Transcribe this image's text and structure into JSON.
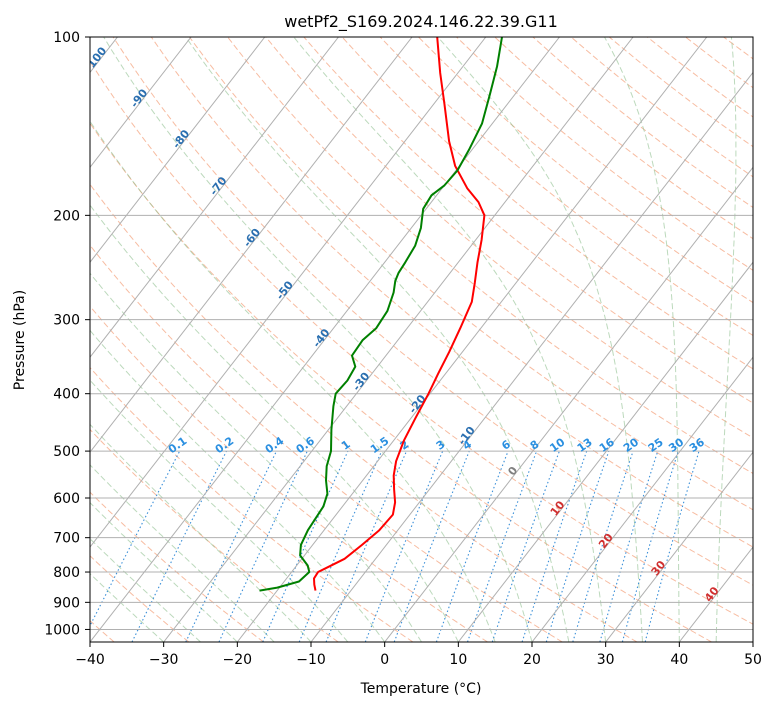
{
  "chart_data": {
    "type": "line",
    "subtype": "skew-t log-p diagram",
    "title": "wetPf2_S169.2024.146.22.39.G11",
    "xlabel": "Temperature (°C)",
    "ylabel": "Pressure (hPa)",
    "xlim": [
      -40,
      50
    ],
    "ylim": [
      1050,
      100
    ],
    "y_scale": "log",
    "grid": true,
    "x_ticks": [
      -40,
      -30,
      -20,
      -10,
      0,
      10,
      20,
      30,
      40,
      50
    ],
    "x_tick_labels": [
      "−40",
      "−30",
      "−20",
      "−10",
      "0",
      "10",
      "20",
      "30",
      "40",
      "50"
    ],
    "y_ticks": [
      1000,
      900,
      800,
      700,
      600,
      500,
      400,
      300,
      200,
      100
    ],
    "y_tick_labels": [
      "1000",
      "900",
      "800",
      "700",
      "600",
      "500",
      "400",
      "300",
      "200",
      "100"
    ],
    "colors": {
      "temperature": "#ff0000",
      "dewpoint": "#008000",
      "isotherm_grid": "#b0b0b0",
      "dry_adiabat": "#f4a582",
      "moist_adiabat": "#8fbf8f",
      "mixing_ratio": "#3a8fd8",
      "isotherm_label": "#2a6fb0",
      "mixing_ratio_label": "#2a8fe0",
      "freezing_label": "#d03030"
    },
    "series": [
      {
        "name": "Temperature",
        "points": [
          {
            "p": 860,
            "t": -14.8
          },
          {
            "p": 840,
            "t": -15.6
          },
          {
            "p": 820,
            "t": -16.3
          },
          {
            "p": 800,
            "t": -16.4
          },
          {
            "p": 785,
            "t": -15.6
          },
          {
            "p": 760,
            "t": -14.2
          },
          {
            "p": 720,
            "t": -13.3
          },
          {
            "p": 680,
            "t": -12.5
          },
          {
            "p": 640,
            "t": -12.3
          },
          {
            "p": 610,
            "t": -13.3
          },
          {
            "p": 580,
            "t": -14.8
          },
          {
            "p": 550,
            "t": -16.3
          },
          {
            "p": 520,
            "t": -17.5
          },
          {
            "p": 480,
            "t": -18.6
          },
          {
            "p": 440,
            "t": -19.4
          },
          {
            "p": 400,
            "t": -20.2
          },
          {
            "p": 370,
            "t": -21.0
          },
          {
            "p": 340,
            "t": -21.8
          },
          {
            "p": 310,
            "t": -22.8
          },
          {
            "p": 280,
            "t": -24.0
          },
          {
            "p": 260,
            "t": -25.6
          },
          {
            "p": 240,
            "t": -27.4
          },
          {
            "p": 220,
            "t": -29.2
          },
          {
            "p": 200,
            "t": -31.4
          },
          {
            "p": 190,
            "t": -33.6
          },
          {
            "p": 180,
            "t": -36.6
          },
          {
            "p": 165,
            "t": -40.6
          },
          {
            "p": 150,
            "t": -44.0
          },
          {
            "p": 130,
            "t": -48.5
          },
          {
            "p": 115,
            "t": -52.4
          },
          {
            "p": 100,
            "t": -56.6
          }
        ]
      },
      {
        "name": "Dewpoint",
        "points": [
          {
            "p": 860,
            "t": -22.4
          },
          {
            "p": 850,
            "t": -20.3
          },
          {
            "p": 830,
            "t": -18.0
          },
          {
            "p": 800,
            "t": -17.6
          },
          {
            "p": 780,
            "t": -18.5
          },
          {
            "p": 750,
            "t": -20.6
          },
          {
            "p": 720,
            "t": -21.6
          },
          {
            "p": 680,
            "t": -22.2
          },
          {
            "p": 620,
            "t": -22.6
          },
          {
            "p": 590,
            "t": -23.4
          },
          {
            "p": 560,
            "t": -25.0
          },
          {
            "p": 530,
            "t": -26.4
          },
          {
            "p": 500,
            "t": -27.4
          },
          {
            "p": 460,
            "t": -29.6
          },
          {
            "p": 420,
            "t": -31.8
          },
          {
            "p": 400,
            "t": -32.8
          },
          {
            "p": 380,
            "t": -32.6
          },
          {
            "p": 360,
            "t": -33.0
          },
          {
            "p": 345,
            "t": -34.6
          },
          {
            "p": 325,
            "t": -34.8
          },
          {
            "p": 310,
            "t": -34.2
          },
          {
            "p": 290,
            "t": -34.5
          },
          {
            "p": 270,
            "t": -35.6
          },
          {
            "p": 258,
            "t": -36.6
          },
          {
            "p": 250,
            "t": -37.0
          },
          {
            "p": 240,
            "t": -37.2
          },
          {
            "p": 225,
            "t": -37.6
          },
          {
            "p": 210,
            "t": -38.7
          },
          {
            "p": 195,
            "t": -40.4
          },
          {
            "p": 185,
            "t": -40.7
          },
          {
            "p": 178,
            "t": -40.0
          },
          {
            "p": 168,
            "t": -39.8
          },
          {
            "p": 155,
            "t": -40.4
          },
          {
            "p": 140,
            "t": -41.4
          },
          {
            "p": 125,
            "t": -43.4
          },
          {
            "p": 112,
            "t": -45.4
          },
          {
            "p": 100,
            "t": -47.8
          }
        ]
      }
    ],
    "isotherm_labels": [
      "-100",
      "-90",
      "-80",
      "-70",
      "-60",
      "-50",
      "-40",
      "-30",
      "-20",
      "-10",
      "0",
      "10",
      "20",
      "30",
      "40"
    ],
    "mixing_ratio_labels": [
      "0.1",
      "0.2",
      "0.4",
      "0.6",
      "1",
      "1.5",
      "2",
      "3",
      "4",
      "6",
      "8",
      "10",
      "13",
      "16",
      "20",
      "25",
      "30",
      "36"
    ]
  }
}
